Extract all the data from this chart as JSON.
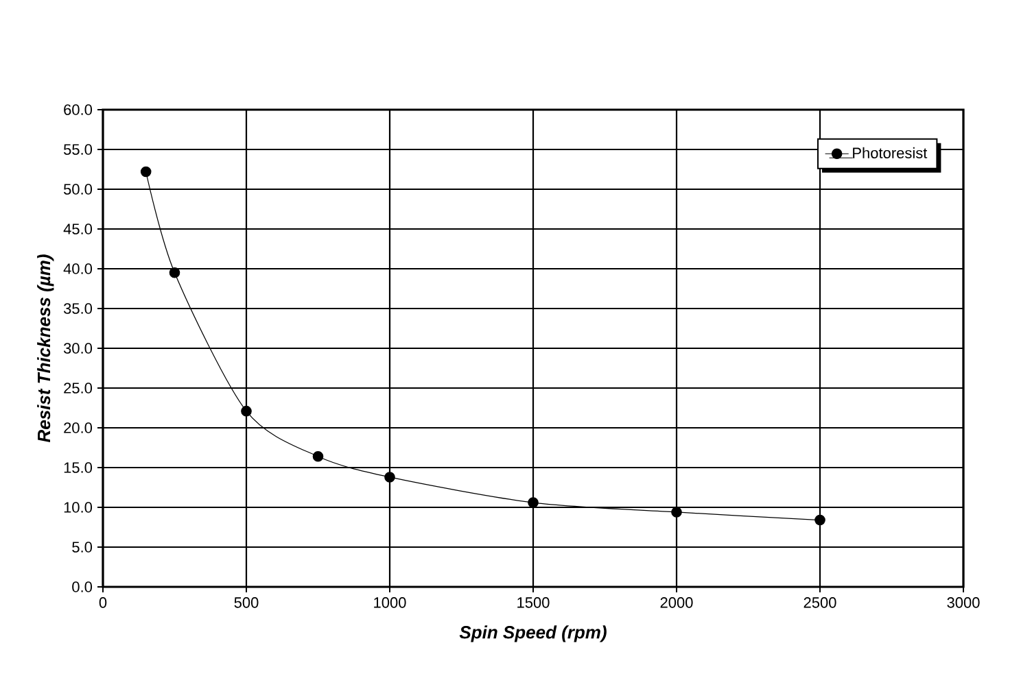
{
  "chart_data": {
    "type": "line",
    "xlabel": "Spin Speed (rpm)",
    "ylabel": "Resist Thickness (µm)",
    "x": [
      150,
      250,
      500,
      750,
      1000,
      1500,
      2000,
      2500
    ],
    "series": [
      {
        "name": "Photoresist",
        "color": "#000000",
        "values": [
          52.2,
          39.5,
          22.1,
          16.4,
          13.8,
          10.6,
          9.4,
          8.4
        ]
      }
    ],
    "xlim": [
      0,
      3000
    ],
    "xticks": [
      0,
      500,
      1000,
      1500,
      2000,
      2500,
      3000
    ],
    "ylim": [
      0,
      60
    ],
    "yticks": [
      {
        "value": 0,
        "label": "0.0"
      },
      {
        "value": 5,
        "label": "5.0"
      },
      {
        "value": 10,
        "label": "10.0"
      },
      {
        "value": 15,
        "label": "15.0"
      },
      {
        "value": 20,
        "label": "20.0"
      },
      {
        "value": 25,
        "label": "25.0"
      },
      {
        "value": 30,
        "label": "30.0"
      },
      {
        "value": 35,
        "label": "35.0"
      },
      {
        "value": 40,
        "label": "40.0"
      },
      {
        "value": 45,
        "label": "45.0"
      },
      {
        "value": 50,
        "label": "50.0"
      },
      {
        "value": 55,
        "label": "55.0"
      },
      {
        "value": 60,
        "label": "60.0"
      }
    ],
    "grid": true,
    "legend": "top right",
    "marker": "circle",
    "line_style": "solid"
  }
}
